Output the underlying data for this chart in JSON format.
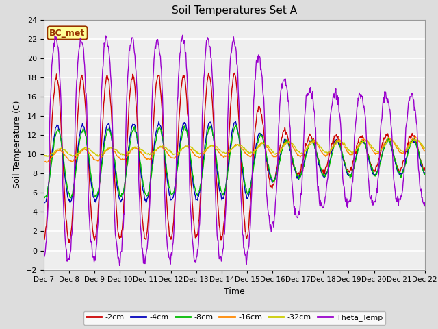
{
  "title": "Soil Temperatures Set A",
  "xlabel": "Time",
  "ylabel": "Soil Temperature (C)",
  "ylim": [
    -2,
    24
  ],
  "yticks": [
    -2,
    0,
    2,
    4,
    6,
    8,
    10,
    12,
    14,
    16,
    18,
    20,
    22,
    24
  ],
  "start_day": 7,
  "end_day": 22,
  "xtick_labels": [
    "Dec 7",
    "Dec 8",
    "Dec 9",
    "Dec 10",
    "Dec 11",
    "Dec 12",
    "Dec 13",
    "Dec 14",
    "Dec 15",
    "Dec 16",
    "Dec 17",
    "Dec 18",
    "Dec 19",
    "Dec 20",
    "Dec 21",
    "Dec 22"
  ],
  "series_colors": {
    "-2cm": "#cc0000",
    "-4cm": "#0000bb",
    "-8cm": "#00bb00",
    "-16cm": "#ff8800",
    "-32cm": "#cccc00",
    "Theta_Temp": "#9900cc"
  },
  "bc_met_box": {
    "text": "BC_met",
    "facecolor": "#ffff99",
    "edgecolor": "#993300",
    "textcolor": "#993300"
  },
  "fig_bg": "#dddddd",
  "plot_bg": "#eeeeee",
  "grid_color": "#ffffff",
  "linewidth": 1.0
}
